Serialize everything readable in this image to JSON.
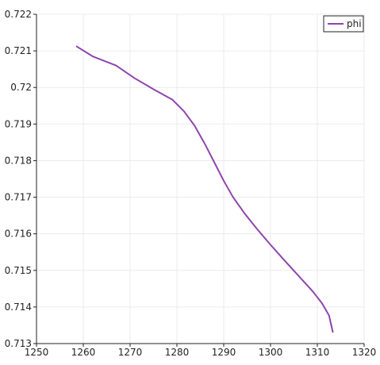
{
  "chart_data": {
    "type": "line",
    "title": "",
    "xlabel": "",
    "ylabel": "",
    "xlim": [
      1250,
      1320
    ],
    "ylim": [
      0.713,
      0.722
    ],
    "x_ticks": [
      "1250",
      "1260",
      "1270",
      "1280",
      "1290",
      "1300",
      "1310",
      "1320"
    ],
    "y_ticks": [
      "0.713",
      "0.714",
      "0.715",
      "0.716",
      "0.717",
      "0.718",
      "0.719",
      "0.72",
      "0.721",
      "0.722"
    ],
    "grid": true,
    "legend_position": "top-right",
    "series": [
      {
        "name": "phi",
        "color": "#8e44ad",
        "x": [
          1258.6,
          1262.0,
          1267.0,
          1271.0,
          1275.0,
          1279.0,
          1281.5,
          1283.8,
          1286.0,
          1288.0,
          1290.0,
          1292.0,
          1294.5,
          1297.0,
          1300.0,
          1303.0,
          1306.0,
          1309.0,
          1311.0,
          1312.5,
          1313.3
        ],
        "y": [
          0.72112,
          0.72085,
          0.7206,
          0.72025,
          0.71995,
          0.71967,
          0.71935,
          0.71895,
          0.71845,
          0.71795,
          0.71745,
          0.717,
          0.71655,
          0.71615,
          0.7157,
          0.71527,
          0.71485,
          0.71443,
          0.7141,
          0.71377,
          0.71332
        ]
      }
    ]
  }
}
